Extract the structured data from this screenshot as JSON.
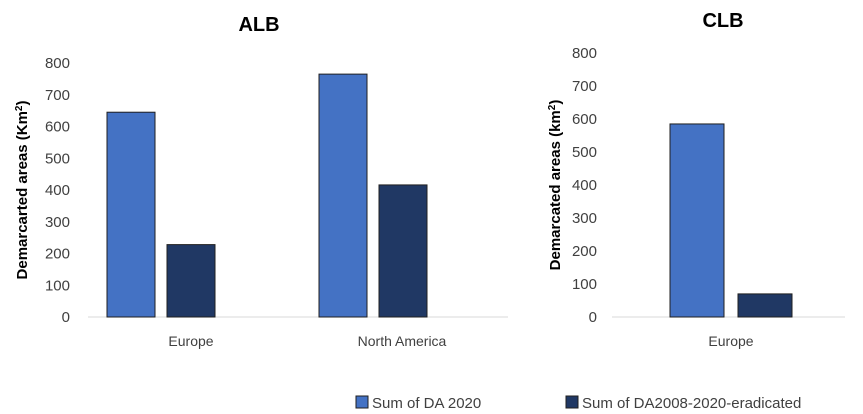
{
  "chart_data": [
    {
      "type": "bar",
      "title": "ALB",
      "ylabel": "Demarcarted areas (Km",
      "ylabel_sup": "2",
      "ylabel_close": ")",
      "categories": [
        "Europe",
        "North America"
      ],
      "ylim": [
        0,
        800
      ],
      "yticks": [
        0,
        100,
        200,
        300,
        400,
        500,
        600,
        700,
        800
      ],
      "grid": false,
      "series": [
        {
          "name": "Sum of DA 2020",
          "color": "#4472C4",
          "values": [
            645,
            765
          ]
        },
        {
          "name": "Sum of DA2008-2020-eradicated",
          "color": "#203864",
          "values": [
            228,
            416
          ]
        }
      ]
    },
    {
      "type": "bar",
      "title": "CLB",
      "ylabel": "Demarcated areas (km",
      "ylabel_sup": "2",
      "ylabel_close": ")",
      "categories": [
        "Europe"
      ],
      "ylim": [
        0,
        800
      ],
      "yticks": [
        0,
        100,
        200,
        300,
        400,
        500,
        600,
        700,
        800
      ],
      "grid": false,
      "series": [
        {
          "name": "Sum of DA 2020",
          "color": "#4472C4",
          "values": [
            585
          ]
        },
        {
          "name": "Sum of DA2008-2020-eradicated",
          "color": "#203864",
          "values": [
            70
          ]
        }
      ]
    }
  ],
  "legend": {
    "position": "bottom-right",
    "items": [
      {
        "label": "Sum of DA 2020",
        "color": "#4472C4"
      },
      {
        "label": "Sum of DA2008-2020-eradicated",
        "color": "#203864"
      }
    ]
  }
}
